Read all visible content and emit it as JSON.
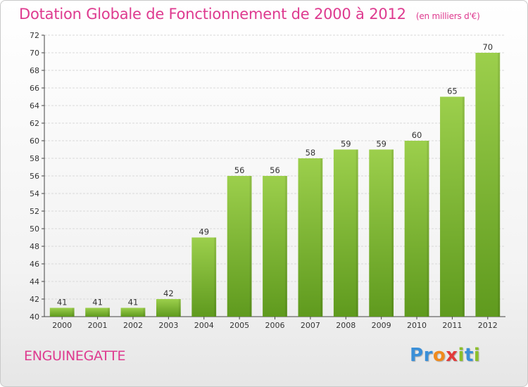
{
  "chart_data": {
    "type": "bar",
    "title": "Dotation Globale de Fonctionnement de 2000 à 2012",
    "subtitle": "(en milliers d'€)",
    "categories": [
      "2000",
      "2001",
      "2002",
      "2003",
      "2004",
      "2005",
      "2006",
      "2007",
      "2008",
      "2009",
      "2010",
      "2011",
      "2012"
    ],
    "values": [
      41,
      41,
      41,
      42,
      49,
      56,
      56,
      58,
      59,
      59,
      60,
      65,
      70
    ],
    "ylim": [
      40,
      72
    ],
    "yticks": [
      40,
      42,
      44,
      46,
      48,
      50,
      52,
      54,
      56,
      58,
      60,
      62,
      64,
      66,
      68,
      70,
      72
    ],
    "grid": true,
    "bar_color": "#8cc63f",
    "bar_color_dark": "#5f9a1e"
  },
  "footer": {
    "city": "ENGUINEGATTE",
    "logo_letters": [
      "P",
      "r",
      "o",
      "x",
      "i",
      "t",
      "i"
    ]
  },
  "colors": {
    "title": "#de3a8f",
    "grid": "#d9d9d9"
  }
}
